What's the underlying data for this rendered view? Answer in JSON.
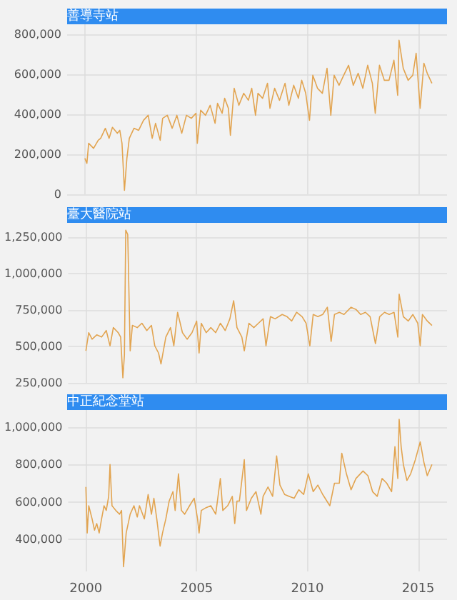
{
  "chart_data": [
    {
      "type": "line",
      "title": "善導寺站",
      "tick_labels": "y",
      "grid": true,
      "xlim": [
        1999.2,
        2016.3
      ],
      "xticks": [
        2000,
        2005,
        2010,
        2015
      ],
      "ylim": [
        0,
        850000
      ],
      "yticks": [
        {
          "value": 0,
          "label": "0"
        },
        {
          "value": 200000,
          "label": "200,000"
        },
        {
          "value": 400000,
          "label": "400,000"
        },
        {
          "value": 600000,
          "label": "600,000"
        },
        {
          "value": 800000,
          "label": "800,000"
        }
      ],
      "series": [
        {
          "color": "#e2a450",
          "x": [
            2000.0,
            2000.09,
            2000.17,
            2000.39,
            2000.6,
            2000.71,
            2000.92,
            2001.09,
            2001.24,
            2001.46,
            2001.57,
            2001.67,
            2001.78,
            2001.89,
            2002.0,
            2002.21,
            2002.42,
            2002.64,
            2002.85,
            2003.03,
            2003.18,
            2003.39,
            2003.5,
            2003.71,
            2003.93,
            2004.14,
            2004.36,
            2004.57,
            2004.79,
            2005.0,
            2005.06,
            2005.21,
            2005.43,
            2005.64,
            2005.86,
            2005.97,
            2006.18,
            2006.29,
            2006.46,
            2006.55,
            2006.72,
            2006.93,
            2007.15,
            2007.36,
            2007.51,
            2007.68,
            2007.79,
            2008.0,
            2008.22,
            2008.33,
            2008.54,
            2008.76,
            2009.01,
            2009.18,
            2009.4,
            2009.61,
            2009.76,
            2009.94,
            2010.11,
            2010.26,
            2010.47,
            2010.69,
            2010.9,
            2011.07,
            2011.22,
            2011.44,
            2011.65,
            2011.87,
            2012.08,
            2012.3,
            2012.51,
            2012.73,
            2012.94,
            2013.07,
            2013.26,
            2013.48,
            2013.69,
            2013.91,
            2014.08,
            2014.14,
            2014.33,
            2014.55,
            2014.76,
            2014.91,
            2015.09,
            2015.26,
            2015.41,
            2015.62
          ],
          "values": [
            180000,
            155000,
            255000,
            230000,
            270000,
            280000,
            330000,
            280000,
            335000,
            305000,
            320000,
            255000,
            20000,
            180000,
            280000,
            330000,
            320000,
            370000,
            395000,
            280000,
            355000,
            270000,
            380000,
            395000,
            330000,
            395000,
            305000,
            395000,
            380000,
            405000,
            255000,
            420000,
            395000,
            445000,
            355000,
            455000,
            405000,
            480000,
            430000,
            295000,
            530000,
            445000,
            505000,
            470000,
            530000,
            395000,
            505000,
            480000,
            555000,
            430000,
            530000,
            470000,
            555000,
            445000,
            545000,
            480000,
            570000,
            505000,
            370000,
            595000,
            530000,
            505000,
            630000,
            395000,
            595000,
            545000,
            595000,
            645000,
            545000,
            605000,
            530000,
            645000,
            555000,
            405000,
            645000,
            570000,
            570000,
            670000,
            495000,
            770000,
            630000,
            570000,
            595000,
            705000,
            430000,
            655000,
            605000,
            555000
          ]
        }
      ]
    },
    {
      "type": "line",
      "title": "臺大醫院站",
      "tick_labels": "y",
      "grid": true,
      "xlim": [
        1999.2,
        2016.3
      ],
      "xticks": [
        2000,
        2005,
        2010,
        2015
      ],
      "ylim": [
        250000,
        1350000
      ],
      "yticks": [
        {
          "value": 250000,
          "label": "250,000"
        },
        {
          "value": 500000,
          "label": "500,000"
        },
        {
          "value": 750000,
          "label": "750,000"
        },
        {
          "value": 1000000,
          "label": "1,000,000"
        },
        {
          "value": 1250000,
          "label": "1,250,000"
        }
      ],
      "series": [
        {
          "color": "#e2a450",
          "x": [
            2000.0,
            2000.13,
            2000.28,
            2000.49,
            2000.71,
            2000.92,
            2001.09,
            2001.24,
            2001.46,
            2001.57,
            2001.67,
            2001.74,
            2001.8,
            2001.89,
            2002.0,
            2002.1,
            2002.32,
            2002.53,
            2002.75,
            2002.96,
            2003.11,
            2003.28,
            2003.39,
            2003.61,
            2003.82,
            2003.97,
            2004.14,
            2004.36,
            2004.57,
            2004.79,
            2005.0,
            2005.11,
            2005.21,
            2005.43,
            2005.64,
            2005.86,
            2006.07,
            2006.29,
            2006.5,
            2006.67,
            2006.82,
            2007.04,
            2007.15,
            2007.36,
            2007.58,
            2007.79,
            2008.0,
            2008.13,
            2008.33,
            2008.54,
            2008.86,
            2009.08,
            2009.29,
            2009.51,
            2009.76,
            2009.94,
            2010.11,
            2010.26,
            2010.47,
            2010.69,
            2010.9,
            2011.07,
            2011.22,
            2011.44,
            2011.65,
            2011.97,
            2012.19,
            2012.4,
            2012.62,
            2012.83,
            2013.07,
            2013.26,
            2013.48,
            2013.69,
            2013.91,
            2014.08,
            2014.14,
            2014.33,
            2014.55,
            2014.76,
            2014.98,
            2015.09,
            2015.19,
            2015.41,
            2015.62
          ],
          "values": [
            470000,
            595000,
            550000,
            580000,
            565000,
            610000,
            505000,
            630000,
            595000,
            565000,
            285000,
            440000,
            1300000,
            1270000,
            470000,
            645000,
            630000,
            660000,
            610000,
            645000,
            505000,
            455000,
            380000,
            565000,
            630000,
            505000,
            735000,
            595000,
            550000,
            595000,
            675000,
            455000,
            660000,
            595000,
            630000,
            595000,
            660000,
            610000,
            690000,
            815000,
            630000,
            565000,
            470000,
            660000,
            630000,
            660000,
            690000,
            505000,
            705000,
            690000,
            720000,
            705000,
            675000,
            735000,
            705000,
            660000,
            505000,
            720000,
            705000,
            720000,
            770000,
            535000,
            720000,
            735000,
            720000,
            770000,
            755000,
            720000,
            735000,
            705000,
            520000,
            705000,
            735000,
            720000,
            735000,
            565000,
            860000,
            705000,
            675000,
            720000,
            660000,
            505000,
            720000,
            675000,
            645000
          ]
        }
      ]
    },
    {
      "type": "line",
      "title": "中正紀念堂站",
      "grid": true,
      "xlim": [
        1999.2,
        2016.3
      ],
      "xticks": [
        2000,
        2005,
        2010,
        2015
      ],
      "ylim": [
        230000,
        1090000
      ],
      "yticks": [
        {
          "value": 400000,
          "label": "400,000"
        },
        {
          "value": 600000,
          "label": "600,000"
        },
        {
          "value": 800000,
          "label": "800,000"
        },
        {
          "value": 1000000,
          "label": "1,000,000"
        }
      ],
      "series": [
        {
          "color": "#e2a450",
          "x": [
            2000.0,
            2000.06,
            2000.13,
            2000.28,
            2000.39,
            2000.49,
            2000.6,
            2000.71,
            2000.82,
            2000.92,
            2001.03,
            2001.09,
            2001.18,
            2001.35,
            2001.52,
            2001.61,
            2001.7,
            2001.82,
            2002.0,
            2002.17,
            2002.32,
            2002.42,
            2002.64,
            2002.81,
            2002.96,
            2003.07,
            2003.2,
            2003.35,
            2003.46,
            2003.61,
            2003.76,
            2003.93,
            2004.03,
            2004.18,
            2004.31,
            2004.46,
            2004.68,
            2004.89,
            2005.04,
            2005.11,
            2005.21,
            2005.43,
            2005.64,
            2005.86,
            2006.07,
            2006.18,
            2006.4,
            2006.61,
            2006.72,
            2006.82,
            2006.93,
            2007.15,
            2007.25,
            2007.47,
            2007.68,
            2007.9,
            2008.0,
            2008.22,
            2008.43,
            2008.61,
            2008.76,
            2008.97,
            2009.18,
            2009.4,
            2009.61,
            2009.83,
            2010.04,
            2010.26,
            2010.47,
            2010.69,
            2011.01,
            2011.22,
            2011.44,
            2011.55,
            2011.76,
            2011.97,
            2012.19,
            2012.51,
            2012.73,
            2012.94,
            2013.15,
            2013.37,
            2013.58,
            2013.8,
            2013.95,
            2014.08,
            2014.14,
            2014.23,
            2014.33,
            2014.49,
            2014.66,
            2014.87,
            2015.09,
            2015.26,
            2015.41,
            2015.62
          ],
          "values": [
            680000,
            435000,
            580000,
            510000,
            450000,
            485000,
            435000,
            510000,
            580000,
            555000,
            630000,
            800000,
            580000,
            555000,
            535000,
            555000,
            255000,
            435000,
            535000,
            580000,
            520000,
            580000,
            510000,
            640000,
            535000,
            620000,
            510000,
            365000,
            435000,
            510000,
            605000,
            655000,
            555000,
            750000,
            555000,
            535000,
            580000,
            620000,
            510000,
            435000,
            555000,
            570000,
            580000,
            535000,
            725000,
            555000,
            580000,
            630000,
            485000,
            605000,
            605000,
            825000,
            555000,
            620000,
            655000,
            535000,
            630000,
            680000,
            630000,
            845000,
            690000,
            640000,
            630000,
            620000,
            665000,
            640000,
            750000,
            655000,
            690000,
            640000,
            580000,
            700000,
            700000,
            860000,
            750000,
            665000,
            725000,
            765000,
            740000,
            655000,
            630000,
            725000,
            700000,
            655000,
            895000,
            725000,
            1040000,
            895000,
            800000,
            715000,
            750000,
            825000,
            920000,
            810000,
            740000,
            800000
          ]
        }
      ]
    }
  ]
}
